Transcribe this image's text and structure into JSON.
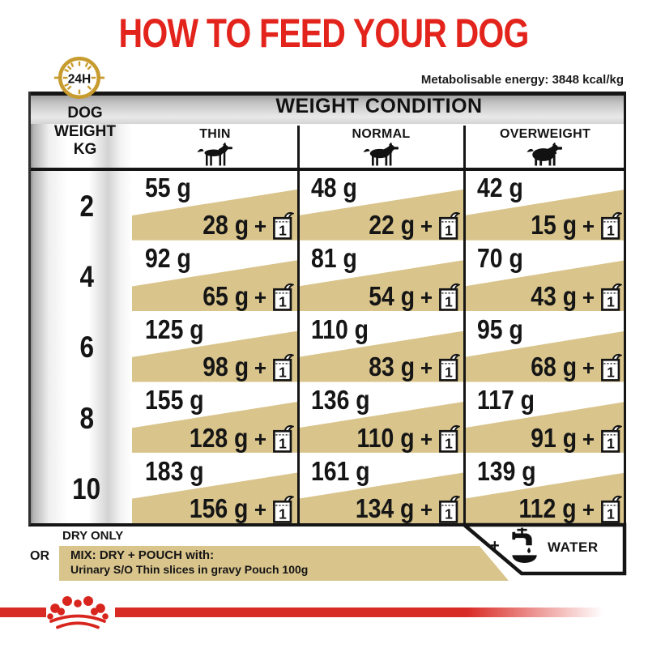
{
  "title": "HOW TO FEED YOUR DOG",
  "energy_note": "Metabolisable energy: 3848 kcal/kg",
  "badge_24h": "24H",
  "table": {
    "corner": {
      "line1": "DOG",
      "line2": "WEIGHT",
      "line3": "KG"
    },
    "header": "WEIGHT CONDITION",
    "conditions": [
      {
        "label": "THIN",
        "icon": "dog-thin-icon"
      },
      {
        "label": "NORMAL",
        "icon": "dog-normal-icon"
      },
      {
        "label": "OVERWEIGHT",
        "icon": "dog-overweight-icon"
      }
    ],
    "plus": "+",
    "pouch_count": "1",
    "rows": [
      {
        "weight": "2",
        "cells": [
          {
            "dry": "55 g",
            "mix": "28 g"
          },
          {
            "dry": "48 g",
            "mix": "22 g"
          },
          {
            "dry": "42 g",
            "mix": "15 g"
          }
        ]
      },
      {
        "weight": "4",
        "cells": [
          {
            "dry": "92 g",
            "mix": "65 g"
          },
          {
            "dry": "81 g",
            "mix": "54 g"
          },
          {
            "dry": "70 g",
            "mix": "43 g"
          }
        ]
      },
      {
        "weight": "6",
        "cells": [
          {
            "dry": "125 g",
            "mix": "98 g"
          },
          {
            "dry": "110 g",
            "mix": "83 g"
          },
          {
            "dry": "95 g",
            "mix": "68 g"
          }
        ]
      },
      {
        "weight": "8",
        "cells": [
          {
            "dry": "155 g",
            "mix": "128 g"
          },
          {
            "dry": "136 g",
            "mix": "110 g"
          },
          {
            "dry": "117 g",
            "mix": "91 g"
          }
        ]
      },
      {
        "weight": "10",
        "cells": [
          {
            "dry": "183 g",
            "mix": "156 g"
          },
          {
            "dry": "161 g",
            "mix": "134 g"
          },
          {
            "dry": "139 g",
            "mix": "112 g"
          }
        ]
      }
    ]
  },
  "legend": {
    "dry_only": "DRY ONLY",
    "or": "OR",
    "mix_title": "MIX: DRY + POUCH with:",
    "mix_sub": "Urinary S/O Thin slices in gravy Pouch 100g",
    "plus": "+",
    "water": "WATER"
  },
  "colors": {
    "red": "#e3241c",
    "gold": "#c79b2e",
    "tan": "#d9c48c",
    "border": "#151515",
    "bar_red": "#d92b25"
  }
}
